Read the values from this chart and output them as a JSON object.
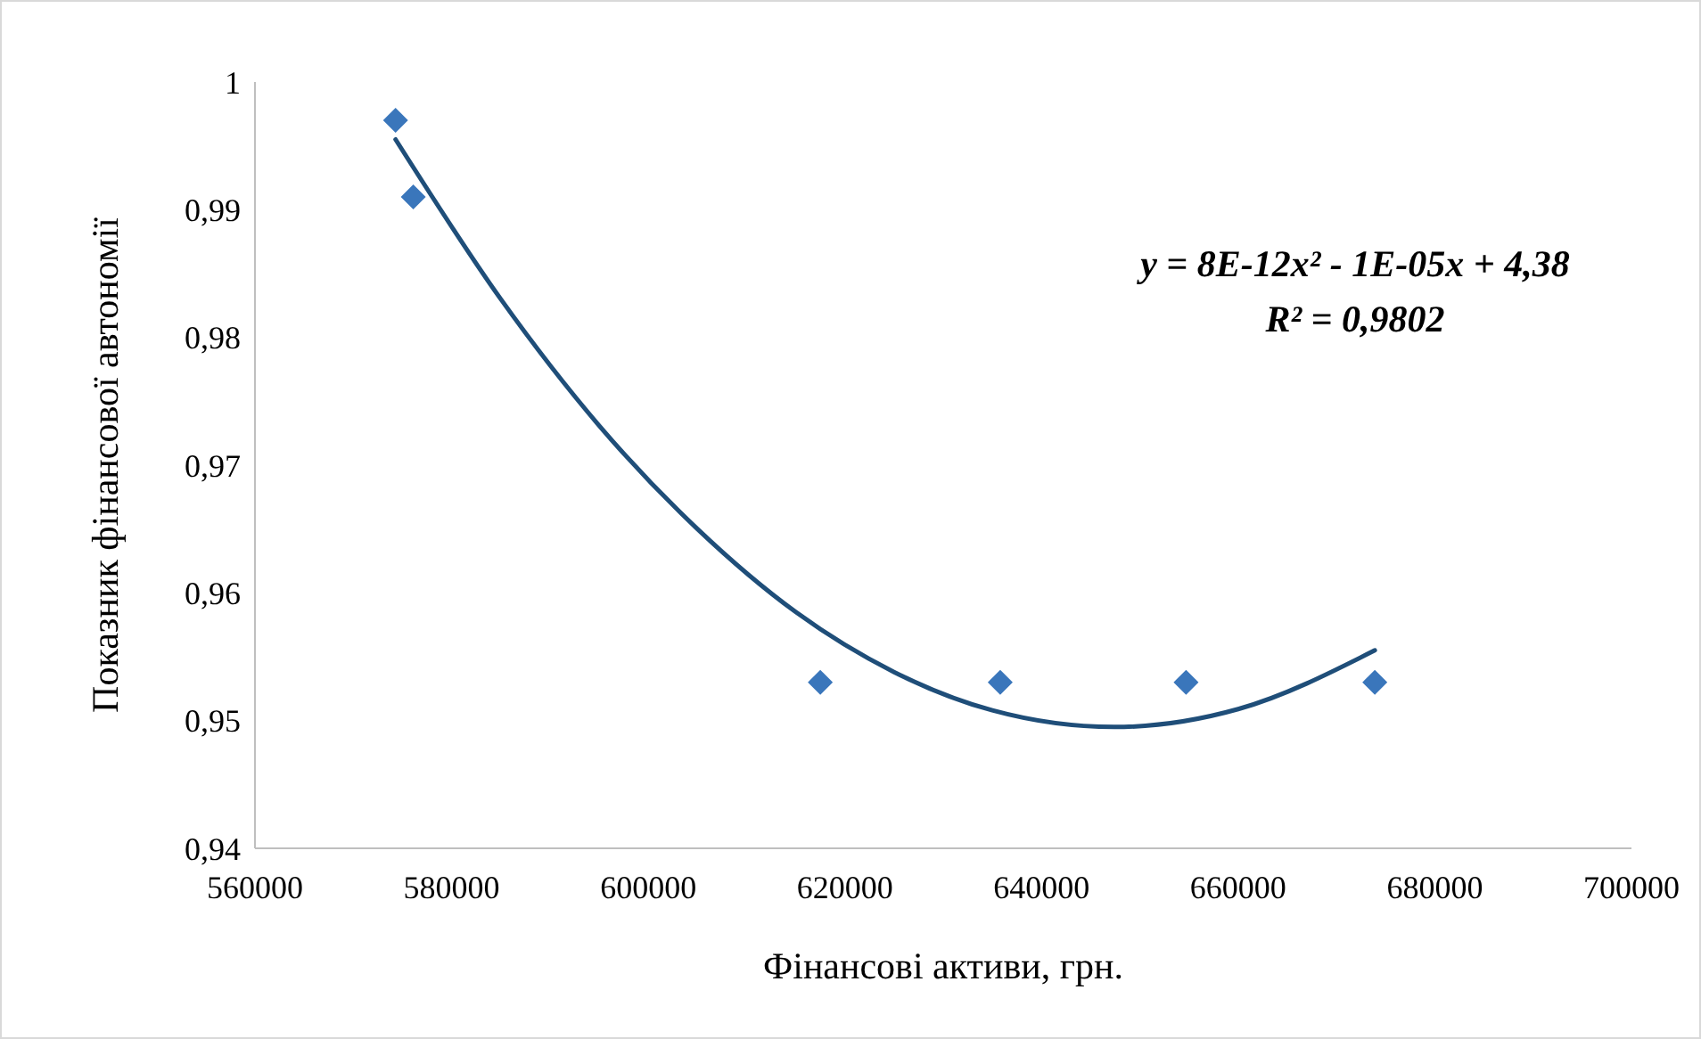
{
  "chart_data": {
    "type": "scatter",
    "xlabel": "Фінансові активи, грн.",
    "ylabel": "Показник фінансової автономії",
    "xlim": [
      560000,
      700000
    ],
    "xticks": [
      560000,
      580000,
      600000,
      620000,
      640000,
      660000,
      680000,
      700000
    ],
    "ylim": [
      0.94,
      1
    ],
    "yticks": [
      {
        "value": 0.94,
        "label": "0,94"
      },
      {
        "value": 0.95,
        "label": "0,95"
      },
      {
        "value": 0.96,
        "label": "0,96"
      },
      {
        "value": 0.97,
        "label": "0,97"
      },
      {
        "value": 0.98,
        "label": "0,98"
      },
      {
        "value": 0.99,
        "label": "0,99"
      },
      {
        "value": 1,
        "label": "1"
      }
    ],
    "grid": false,
    "series": [
      {
        "marker": "diamond",
        "color": "#3a76bb",
        "x": [
          574300,
          576100,
          617500,
          635800,
          654700,
          673900
        ],
        "values": [
          0.997,
          0.991,
          0.953,
          0.953,
          0.953,
          0.953
        ]
      },
      {
        "type": "line",
        "color": "#1f4e79",
        "line_style": "solid",
        "x": [
          574300,
          585000,
          595000,
          605000,
          615000,
          625000,
          635000,
          647400,
          660000,
          673900
        ],
        "values": [
          0.9955,
          0.983,
          0.9731,
          0.965,
          0.9585,
          0.9538,
          0.9508,
          0.9495,
          0.9509,
          0.9555
        ]
      }
    ],
    "annotations": [
      "y = 8E-12x² - 1E-05x + 4,38",
      "R² = 0,9802"
    ]
  }
}
